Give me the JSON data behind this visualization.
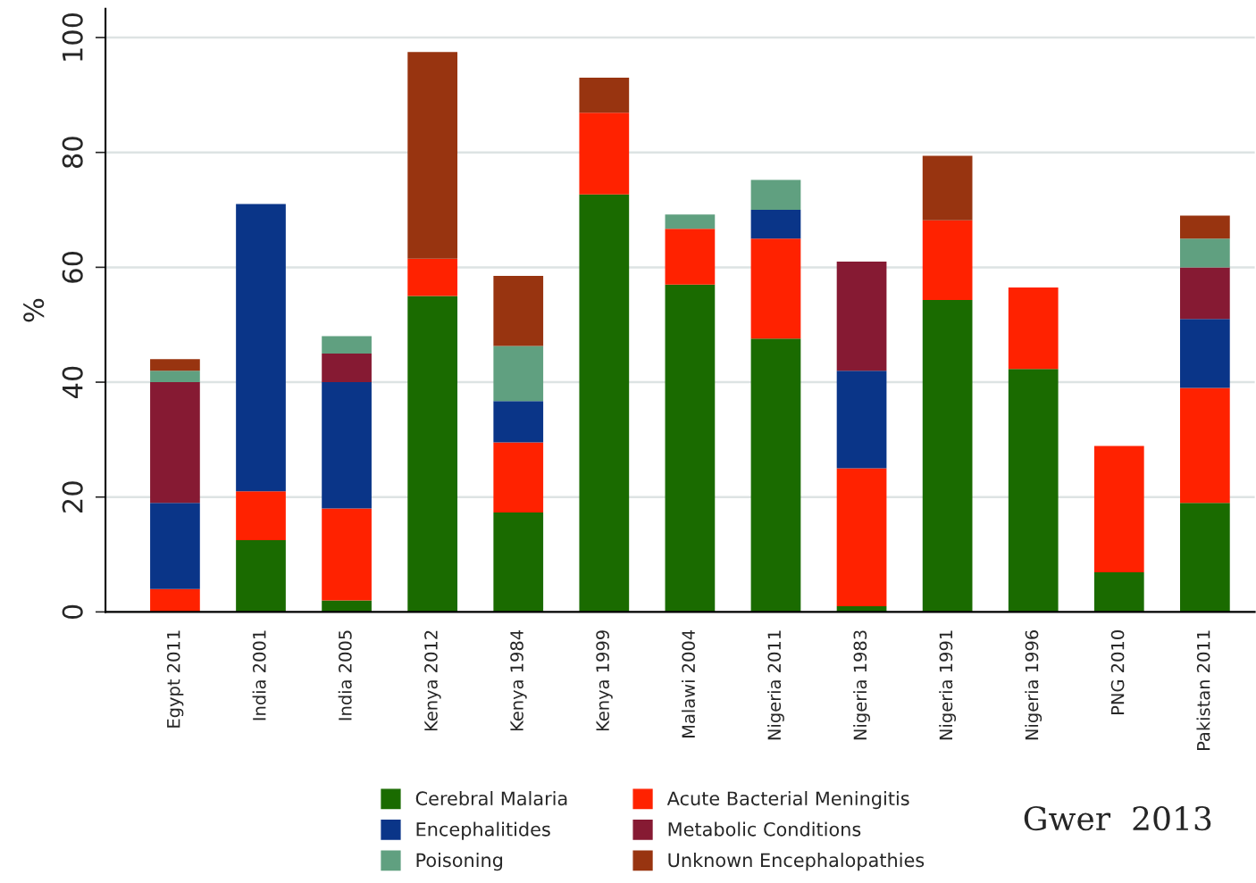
{
  "chart_data": {
    "type": "bar",
    "stacked": true,
    "ylabel": "%",
    "ylim": [
      0,
      105
    ],
    "yticks": [
      0,
      20,
      40,
      60,
      80,
      100
    ],
    "grid": "y",
    "legend": "bottom",
    "categories": [
      "Egypt 2011",
      "India 2001",
      "India 2005",
      "Kenya 2012",
      "Kenya 1984",
      "Kenya 1999",
      "Malawi 2004",
      "Nigeria 2011",
      "Nigeria 1983",
      "Nigeria 1991",
      "Nigeria 1996",
      "PNG 2010",
      "Pakistan 2011"
    ],
    "series": [
      {
        "name": "Cerebral Malaria",
        "color": "#1a6b00",
        "values": [
          0,
          12.5,
          2,
          55,
          17.3,
          72.7,
          57,
          47.6,
          1,
          54.3,
          42.3,
          6.9,
          19
        ]
      },
      {
        "name": "Acute Bacterial Meningitis",
        "color": "#ff2200",
        "values": [
          4,
          8.5,
          16,
          6.5,
          12.2,
          14.2,
          9.7,
          17.4,
          24,
          13.9,
          14.2,
          22,
          20
        ]
      },
      {
        "name": "Encephalitides",
        "color": "#0a3588",
        "values": [
          15,
          50,
          22,
          0,
          7.2,
          0,
          0,
          5,
          17,
          0,
          0,
          0,
          12
        ]
      },
      {
        "name": "Metabolic Conditions",
        "color": "#861a33",
        "values": [
          21,
          0,
          5,
          0,
          0,
          0,
          0,
          0,
          19,
          0,
          0,
          0,
          9
        ]
      },
      {
        "name": "Poisoning",
        "color": "#60a080",
        "values": [
          2,
          0,
          3,
          0,
          9.6,
          0,
          2.5,
          5.2,
          0,
          0,
          0,
          0,
          5
        ]
      },
      {
        "name": "Unknown Encephalopathies",
        "color": "#983410",
        "values": [
          2,
          0,
          0,
          36,
          12.2,
          6.1,
          0,
          0,
          0,
          11.2,
          0,
          0,
          4
        ]
      }
    ],
    "annotations": [
      "Gwer  2013"
    ]
  }
}
